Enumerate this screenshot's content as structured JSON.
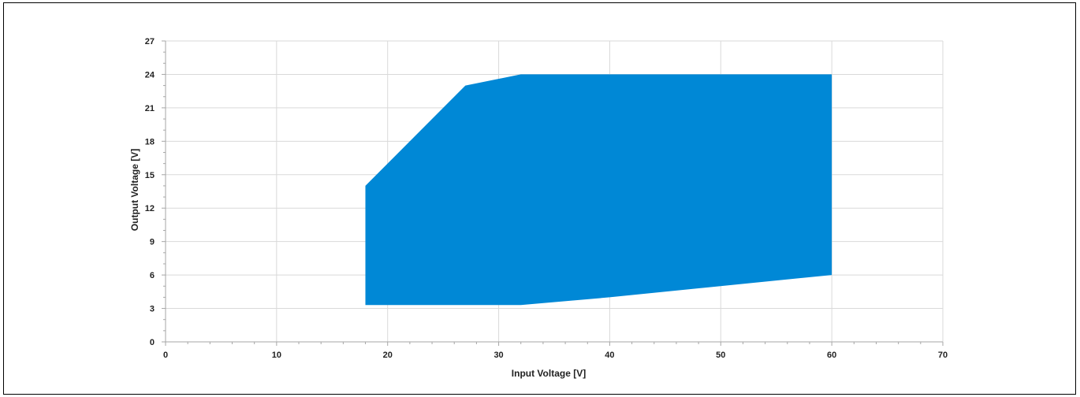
{
  "chart_data": {
    "type": "area",
    "title": "",
    "xlabel": "Input Voltage [V]",
    "ylabel": "Output Voltage [V]",
    "xlim": [
      0,
      70
    ],
    "ylim": [
      0,
      27
    ],
    "x_ticks": [
      0,
      10,
      20,
      30,
      40,
      50,
      60,
      70
    ],
    "y_ticks": [
      0,
      3,
      6,
      9,
      12,
      15,
      18,
      21,
      24,
      27
    ],
    "x_tick_labels": [
      "0",
      "10",
      "20",
      "30",
      "40",
      "50",
      "60",
      "70"
    ],
    "y_tick_labels": [
      "0",
      "3",
      "6",
      "9",
      "12",
      "15",
      "18",
      "21",
      "24",
      "27"
    ],
    "grid": true,
    "legend": false,
    "series": [
      {
        "color": "#0088d6",
        "polygon": [
          {
            "x": 18,
            "y": 3.3
          },
          {
            "x": 18,
            "y": 14
          },
          {
            "x": 27,
            "y": 23
          },
          {
            "x": 32,
            "y": 24
          },
          {
            "x": 60,
            "y": 24
          },
          {
            "x": 60,
            "y": 6
          },
          {
            "x": 40,
            "y": 4
          },
          {
            "x": 32,
            "y": 3.3
          }
        ]
      }
    ]
  }
}
